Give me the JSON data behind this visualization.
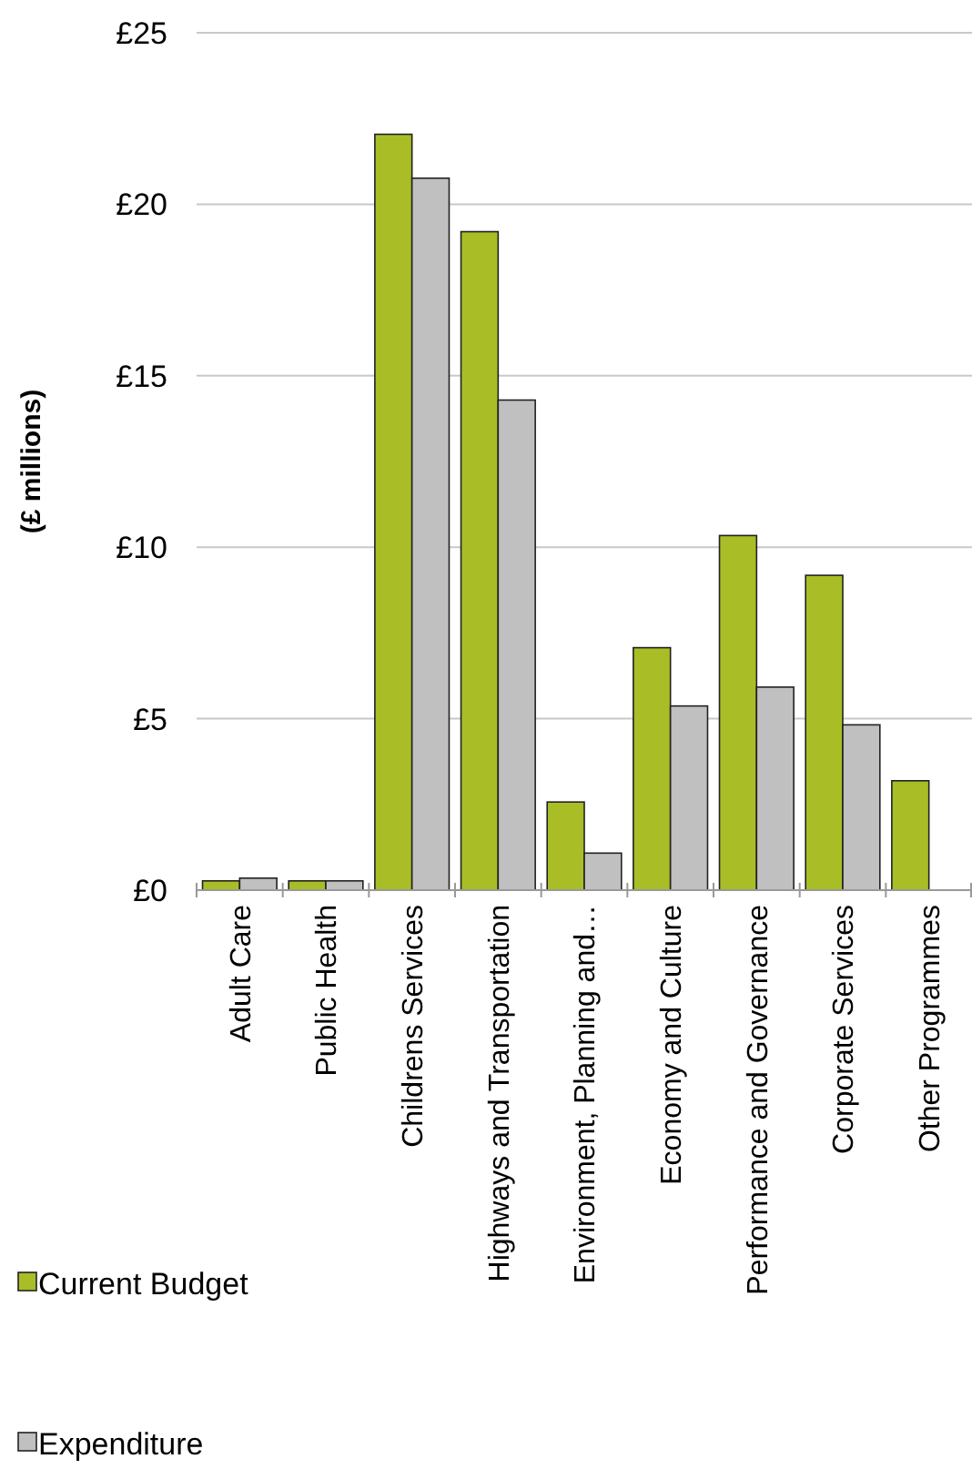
{
  "chart_data": {
    "type": "bar",
    "ylabel": "(£ millions)",
    "categories": [
      "Adult Care",
      "Public Health",
      "Childrens Services",
      "Highways and Transportation",
      "Environment, Planning and…",
      "Economy and Culture",
      "Performance and Governance",
      "Corporate Services",
      "Other Programmes"
    ],
    "series": [
      {
        "name": "Current Budget",
        "color": "#a9bd26",
        "values": [
          0.27,
          0.27,
          22.04,
          19.2,
          2.57,
          7.07,
          10.34,
          9.18,
          3.19
        ]
      },
      {
        "name": "Expenditure",
        "color": "#c0c0c0",
        "values": [
          0.35,
          0.27,
          20.76,
          14.29,
          1.08,
          5.37,
          5.92,
          4.82,
          null
        ]
      }
    ],
    "ylim": [
      0,
      25
    ],
    "yticks": [
      {
        "value": 0,
        "label": "£0"
      },
      {
        "value": 5,
        "label": "£5"
      },
      {
        "value": 10,
        "label": "£10"
      },
      {
        "value": 15,
        "label": "£15"
      },
      {
        "value": 20,
        "label": "£20"
      },
      {
        "value": 25,
        "label": "£25"
      }
    ],
    "grid": "y",
    "legend": "bottom left"
  }
}
